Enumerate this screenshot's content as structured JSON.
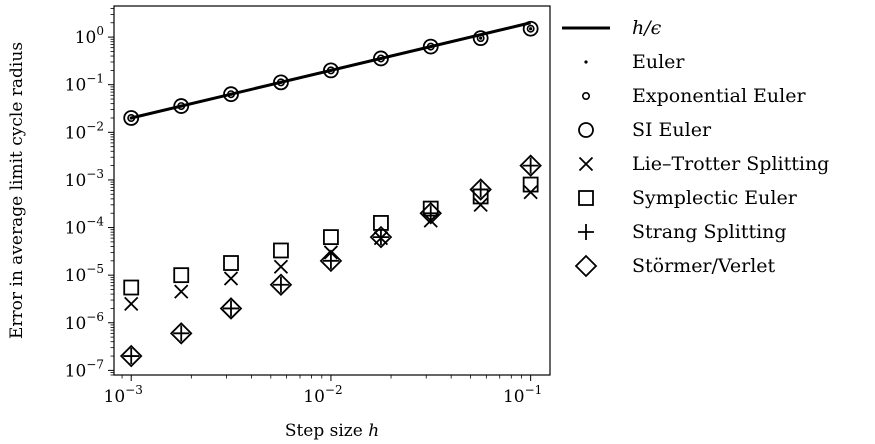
{
  "chart_data": {
    "type": "scatter",
    "xscale": "log",
    "yscale": "log",
    "xlim": [
      0.00082,
      0.125
    ],
    "ylim": [
      8e-08,
      4.5
    ],
    "xlabel": "Step size h",
    "xlabel_text": "Step size ",
    "xlabel_var": "h",
    "ylabel": "Error in average limit cycle radius",
    "xticks": [
      {
        "value": 0.001,
        "base": "10",
        "exp": "−3"
      },
      {
        "value": 0.01,
        "base": "10",
        "exp": "−2"
      },
      {
        "value": 0.1,
        "base": "10",
        "exp": "−1"
      }
    ],
    "yticks": [
      {
        "value": 1e-07,
        "base": "10",
        "exp": "−7"
      },
      {
        "value": 1e-06,
        "base": "10",
        "exp": "−6"
      },
      {
        "value": 1e-05,
        "base": "10",
        "exp": "−5"
      },
      {
        "value": 0.0001,
        "base": "10",
        "exp": "−4"
      },
      {
        "value": 0.001,
        "base": "10",
        "exp": "−3"
      },
      {
        "value": 0.01,
        "base": "10",
        "exp": "−2"
      },
      {
        "value": 0.1,
        "base": "10",
        "exp": "−1"
      },
      {
        "value": 1,
        "base": "10",
        "exp": "0"
      }
    ],
    "legend_position": "outside-right",
    "grid": false,
    "x": [
      0.001,
      0.00178,
      0.00316,
      0.00562,
      0.01,
      0.0178,
      0.0316,
      0.0562,
      0.1
    ],
    "reference_line": {
      "name": "h/ϵ",
      "label_main": "h/",
      "label_greek": "ϵ",
      "x": [
        0.001,
        0.1
      ],
      "y": [
        0.02,
        2.0
      ]
    },
    "series": [
      {
        "name": "Euler",
        "marker": "dot",
        "values": [
          0.02,
          0.0356,
          0.0632,
          0.112,
          0.2,
          0.356,
          0.632,
          0.95,
          1.5
        ]
      },
      {
        "name": "Exponential Euler",
        "marker": "small-circle",
        "values": [
          0.02,
          0.0356,
          0.0632,
          0.112,
          0.2,
          0.356,
          0.632,
          0.95,
          1.5
        ]
      },
      {
        "name": "SI Euler",
        "marker": "circle",
        "values": [
          0.02,
          0.0356,
          0.0632,
          0.112,
          0.2,
          0.356,
          0.632,
          0.95,
          1.5
        ]
      },
      {
        "name": "Lie–Trotter Splitting",
        "marker": "x",
        "values": [
          2.5e-06,
          4.5e-06,
          8.5e-06,
          1.5e-05,
          3e-05,
          6e-05,
          0.00014,
          0.0003,
          0.00055
        ]
      },
      {
        "name": "Symplectic Euler",
        "marker": "square",
        "values": [
          5.5e-06,
          1e-05,
          1.8e-05,
          3.3e-05,
          6.3e-05,
          0.000125,
          0.00025,
          0.00045,
          0.0008
        ]
      },
      {
        "name": "Strang Splitting",
        "marker": "plus",
        "values": [
          2e-07,
          6e-07,
          2e-06,
          6.3e-06,
          2e-05,
          6.3e-05,
          0.0002,
          0.00063,
          0.002
        ]
      },
      {
        "name": "Störmer/Verlet",
        "marker": "diamond",
        "values": [
          2e-07,
          6e-07,
          2e-06,
          6.3e-06,
          2e-05,
          6.3e-05,
          0.0002,
          0.00063,
          0.002
        ]
      }
    ]
  }
}
